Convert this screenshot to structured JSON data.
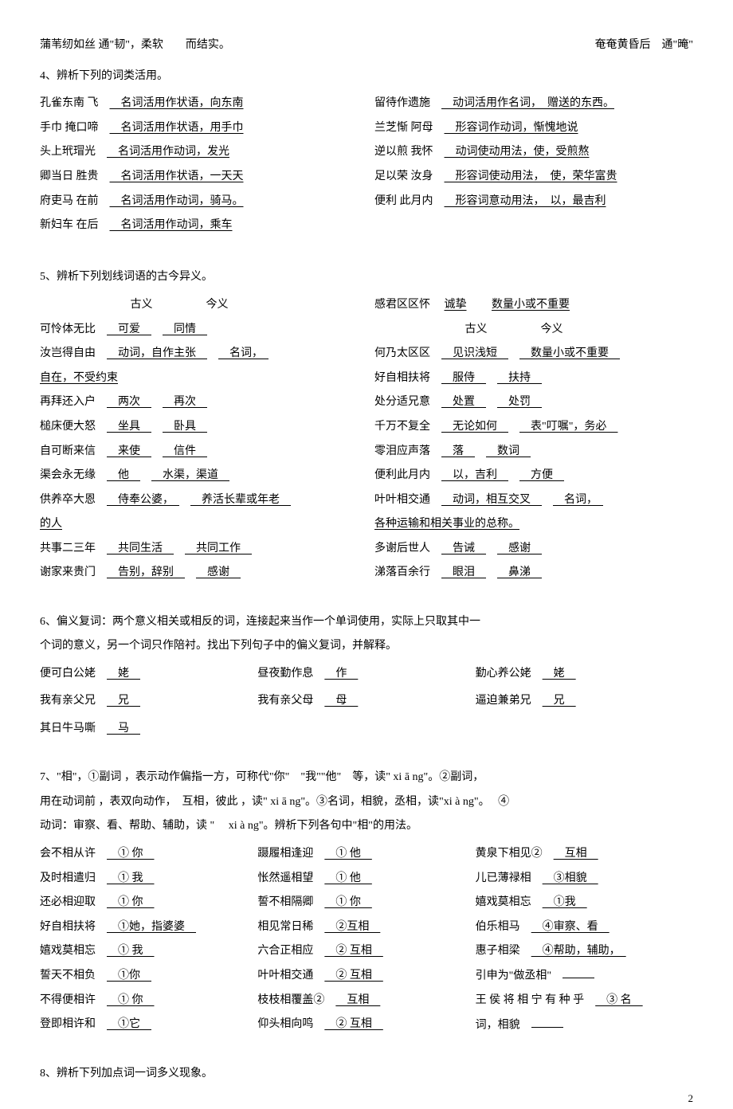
{
  "page_number": "2",
  "top": {
    "left": "蒲苇纫如丝 通\"韧\"，柔软　　而结实。",
    "right": "奄奄黄昏后　通\"晻\""
  },
  "section4": {
    "title": "4、辨析下列的词类活用。",
    "left": [
      {
        "a": "孔雀东南 飞",
        "b": "名词活用作状语，向东南"
      },
      {
        "a": "手巾 掩口啼",
        "b": "名词活用作状语，用手巾"
      },
      {
        "a": "头上玳瑁光",
        "b": "名词活用作动词，发光"
      },
      {
        "a": "卿当日 胜贵",
        "b": "名词活用作状语，一天天"
      },
      {
        "a": "府吏马 在前",
        "b": "名词活用作动词，骑马。"
      },
      {
        "a": "新妇车 在后",
        "b": "名词活用作动词，乘车"
      }
    ],
    "right": [
      {
        "a": "留待作遗施",
        "b": "动词活用作名词，　赠送的东西。"
      },
      {
        "a": "兰芝惭 阿母",
        "b": "形容词作动词，惭愧地说"
      },
      {
        "a": "逆以煎 我怀",
        "b": "动词使动用法，使，受煎熬"
      },
      {
        "a": "足以荣 汝身",
        "b": "形容词使动用法，　使，荣华富贵"
      },
      {
        "a": "便利 此月内",
        "b": "形容词意动用法，　以，最吉利"
      }
    ]
  },
  "section5": {
    "title": "5、辨析下列划线词语的古今异义。",
    "header_old": "古义",
    "header_new": "今义",
    "left": [
      {
        "a": "可怜体无比",
        "b": "可爱",
        "c": "同情"
      },
      {
        "a": "汝岂得自由",
        "b": "动词，自作主张",
        "c": "名词，"
      },
      {
        "a": "自在，不受约束",
        "b": "",
        "c": ""
      },
      {
        "a": "再拜还入户",
        "b": "两次",
        "c": "再次"
      },
      {
        "a": "槌床便大怒",
        "b": "坐具",
        "c": "卧具"
      },
      {
        "a": "自可断来信",
        "b": "来使",
        "c": "信件"
      },
      {
        "a": "渠会永无缘",
        "b": "他",
        "c": "水渠，渠道"
      },
      {
        "a": "供养卒大恩",
        "b": "侍奉公婆，",
        "c": "养活长辈或年老"
      },
      {
        "a": "的人",
        "b": "",
        "c": ""
      },
      {
        "a": "共事二三年",
        "b": "共同生活",
        "c": "共同工作"
      },
      {
        "a": "谢家来贵门",
        "b": "告别，辞别",
        "c": "感谢"
      }
    ],
    "right_first": {
      "a": "感君区区怀",
      "b": "诚挚",
      "c": "数量小或不重要"
    },
    "right": [
      {
        "a": "何乃太区区",
        "b": "见识浅短",
        "c": "数量小或不重要"
      },
      {
        "a": "好自相扶将",
        "b": "服侍",
        "c": "扶持"
      },
      {
        "a": "处分适兄意",
        "b": "处置",
        "c": "处罚"
      },
      {
        "a": "千万不复全",
        "b": "无论如何",
        "c": "表\"叮嘱\"，务必"
      },
      {
        "a": "零泪应声落",
        "b": "落",
        "c": "数词"
      },
      {
        "a": "便利此月内",
        "b": "以，吉利",
        "c": "方便"
      },
      {
        "a": "叶叶相交通",
        "b": "动词，相互交叉",
        "c": "名词，"
      },
      {
        "a": "各种运输和相关事业的总称。",
        "b": "",
        "c": ""
      },
      {
        "a": "多谢后世人",
        "b": "告诫",
        "c": "感谢"
      },
      {
        "a": "涕落百余行",
        "b": "眼泪",
        "c": "鼻涕"
      }
    ]
  },
  "section6": {
    "title1": "6、偏义复词：两个意义相关或相反的词，连接起来当作一个单词使用，实际上只取其中一",
    "title2": "个词的意义，另一个词只作陪衬。找出下列句子中的偏义复词，并解释。",
    "rows": [
      [
        {
          "a": "便可白公姥",
          "b": "姥"
        },
        {
          "a": "昼夜勤作息",
          "b": "作"
        },
        {
          "a": "勤心养公姥",
          "b": "姥"
        }
      ],
      [
        {
          "a": "我有亲父兄",
          "b": "兄"
        },
        {
          "a": "我有亲父母",
          "b": "母"
        },
        {
          "a": "逼迫兼弟兄",
          "b": "兄"
        }
      ],
      [
        {
          "a": "其日牛马嘶",
          "b": "马"
        },
        {
          "a": "",
          "b": ""
        },
        {
          "a": "",
          "b": ""
        }
      ]
    ]
  },
  "section7": {
    "title1": "7、\"相\"，①副词 ，表示动作偏指一方，可称代\"你\"　\"我\"\"他\"　等，读\" xi ā ng\"。②副词，",
    "title2": "用在动词前 ，表双向动作，　互相，彼此 ，读\" xi ā ng\"。③名词，相貌，丞相，读\"xi à ng\"。　 ④",
    "title3": "动词：审察、看、帮助、辅助，读 \"　 xi à ng\"。辨析下列各句中\"相\"的用法。",
    "col1": [
      {
        "a": "会不相从许",
        "b": "①  你"
      },
      {
        "a": "及时相遣归",
        "b": "① 我"
      },
      {
        "a": "还必相迎取",
        "b": "①  你"
      },
      {
        "a": "好自相扶将",
        "b": "①她，指婆婆"
      },
      {
        "a": "嬉戏莫相忘",
        "b": "① 我"
      },
      {
        "a": "誓天不相负",
        "b": "①你"
      },
      {
        "a": "不得便相许",
        "b": "①  你"
      },
      {
        "a": "登即相许和",
        "b": "①它"
      }
    ],
    "col2": [
      {
        "a": "蹑履相逢迎",
        "b": "① 他"
      },
      {
        "a": "怅然遥相望",
        "b": "①  他"
      },
      {
        "a": "誓不相隔卿",
        "b": "① 你"
      },
      {
        "a": "相见常日稀",
        "b": "②互相"
      },
      {
        "a": "六合正相应",
        "b": "② 互相"
      },
      {
        "a": "叶叶相交通",
        "b": "② 互相"
      },
      {
        "a": "枝枝相覆盖②",
        "b": "互相"
      },
      {
        "a": "仰头相向鸣",
        "b": "② 互相"
      }
    ],
    "col3": [
      {
        "a": "黄泉下相见②",
        "b": "互相"
      },
      {
        "a": "儿已薄禄相",
        "b": "③相貌"
      },
      {
        "a": "嬉戏莫相忘",
        "b": "①我"
      },
      {
        "a": "伯乐相马",
        "b": "④审察、看"
      },
      {
        "a": "惠子相梁",
        "b": "④帮助，辅助，"
      },
      {
        "a": "引申为\"做丞相\"",
        "b": ""
      },
      {
        "a": "王 侯 将 相 宁 有 种 乎",
        "b": "③ 名"
      },
      {
        "a": "词，相貌",
        "b": ""
      }
    ]
  },
  "section8": {
    "title": "8、辨析下列加点词一词多义现象。"
  }
}
